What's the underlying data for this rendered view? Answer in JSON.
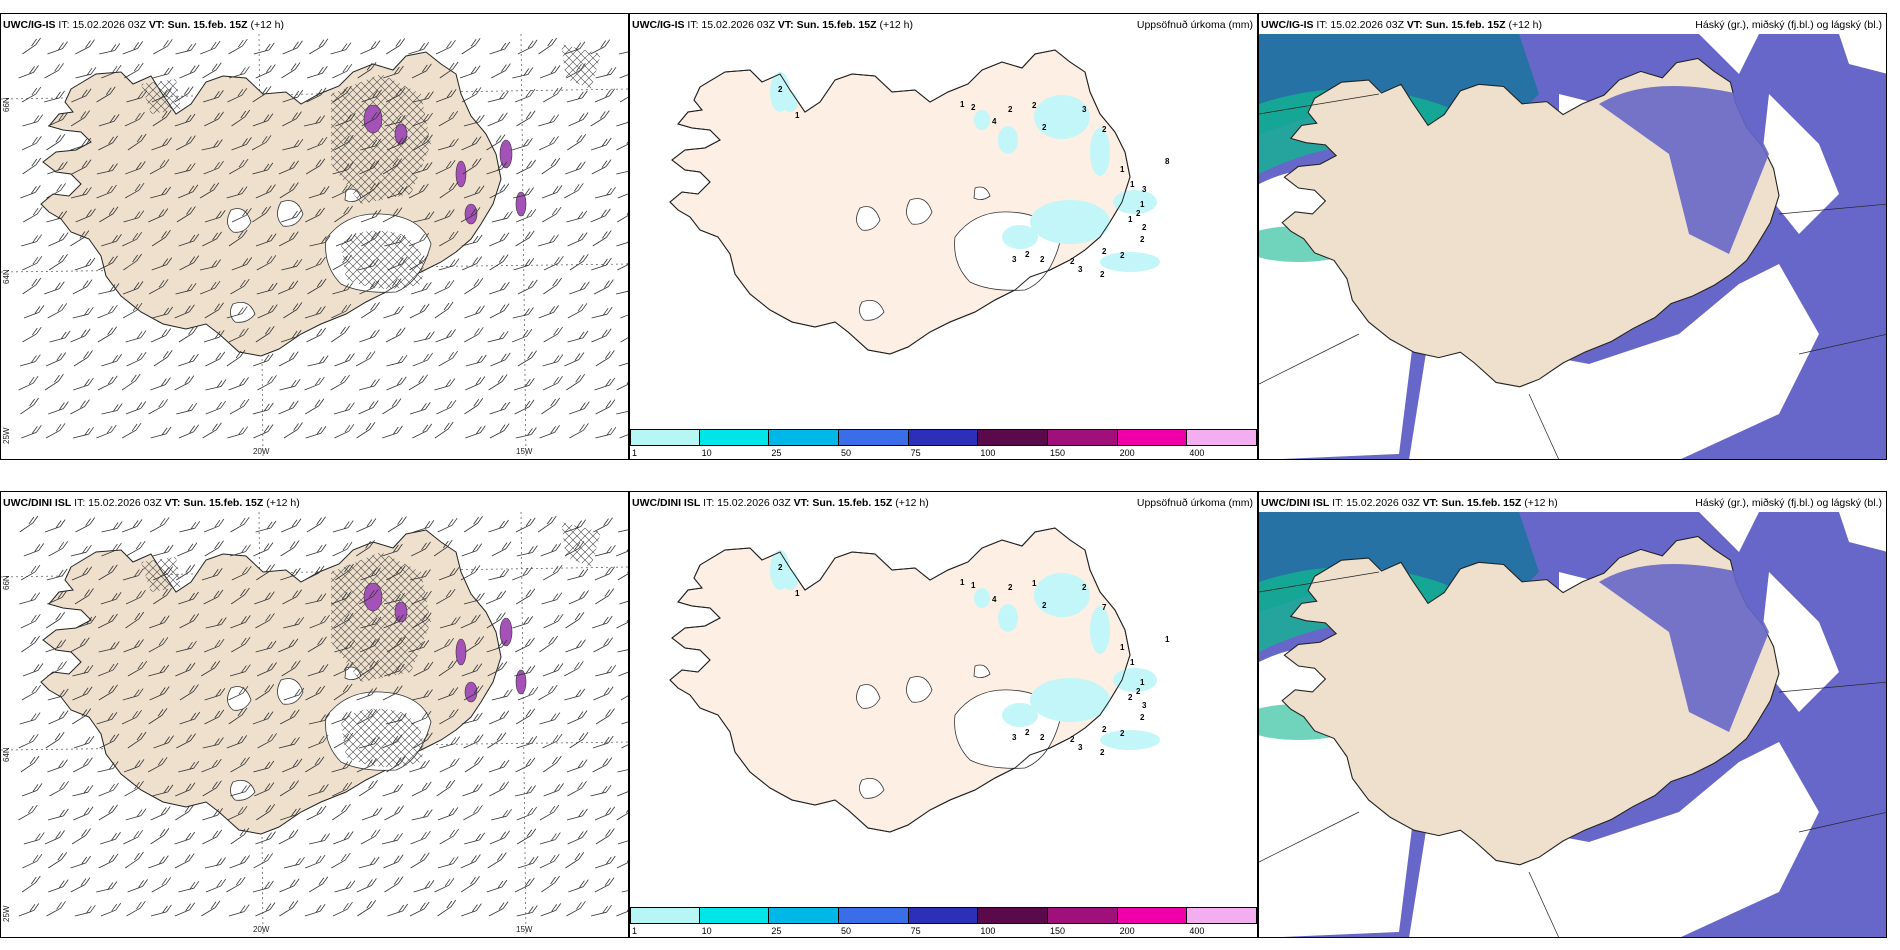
{
  "panels": [
    {
      "id": "ig-wind",
      "model": "UWC/IG-IS",
      "it": "IT: 15.02.2026 03Z",
      "vt_label": "VT:",
      "vt": "Sun. 15.feb. 15Z",
      "lead": "(+12 h)",
      "right": ""
    },
    {
      "id": "ig-precip",
      "model": "UWC/IG-IS",
      "it": "IT: 15.02.2026 03Z",
      "vt_label": "VT:",
      "vt": "Sun. 15.feb. 15Z",
      "lead": "(+12 h)",
      "right": "Uppsöfnuð úrkoma (mm)"
    },
    {
      "id": "ig-cloud",
      "model": "UWC/IG-IS",
      "it": "IT: 15.02.2026 03Z",
      "vt_label": "VT:",
      "vt": "Sun. 15.feb. 15Z",
      "lead": "(+12 h)",
      "right": "Háský (gr.), miðský (fj.bl.) og lágský (bl.)"
    },
    {
      "id": "dini-wind",
      "model": "UWC/DINI ISL",
      "it": "IT: 15.02.2026 03Z",
      "vt_label": "VT:",
      "vt": "Sun. 15.feb. 15Z",
      "lead": "(+12 h)",
      "right": ""
    },
    {
      "id": "dini-precip",
      "model": "UWC/DINI ISL",
      "it": "IT: 15.02.2026 03Z",
      "vt_label": "VT:",
      "vt": "Sun. 15.feb. 15Z",
      "lead": "(+12 h)",
      "right": "Uppsöfnuð úrkoma (mm)"
    },
    {
      "id": "dini-cloud",
      "model": "UWC/DINI ISL",
      "it": "IT: 15.02.2026 03Z",
      "vt_label": "VT:",
      "vt": "Sun. 15.feb. 15Z",
      "lead": "(+12 h)",
      "right": "Háský (gr.), miðský (fj.bl.) og lágský (bl.)"
    }
  ],
  "grid_labels": {
    "lat_66": "66N",
    "lat_64": "64N",
    "lon_25": "25W",
    "lon_20": "20W",
    "lon_15": "15W"
  },
  "colorbar": {
    "ticks": [
      "1",
      "10",
      "25",
      "50",
      "75",
      "100",
      "150",
      "200",
      "400"
    ],
    "colors": [
      "#b6f7f6",
      "#00e5e8",
      "#00b8e8",
      "#3a6ee8",
      "#2c2fb8",
      "#5a0a4a",
      "#a0107a",
      "#f000a8",
      "#f3aef0"
    ]
  },
  "precip_labels_top": [
    "2",
    "1",
    "1",
    "2",
    "4",
    "2",
    "2",
    "2",
    "3",
    "2",
    "8",
    "1",
    "1",
    "1",
    "1",
    "2",
    "2",
    "2",
    "2",
    "2",
    "3",
    "3",
    "2",
    "2",
    "2",
    "2",
    "3"
  ],
  "precip_labels_bottom": [
    "2",
    "1",
    "1",
    "1",
    "4",
    "2",
    "1",
    "2",
    "2",
    "7",
    "1",
    "1",
    "1",
    "1",
    "2",
    "2",
    "2",
    "2",
    "2",
    "2",
    "3",
    "3",
    "2",
    "2",
    "2",
    "3"
  ],
  "colors": {
    "land": "#eee0cc",
    "land_precip": "#fdefe3",
    "light_precip": "#c3f6f8",
    "sea_cloud_low": "#6667c8",
    "sea_cloud_mid": "#1f73a0",
    "cloud_high": "#10b890",
    "cloud_red": "#e05030"
  }
}
